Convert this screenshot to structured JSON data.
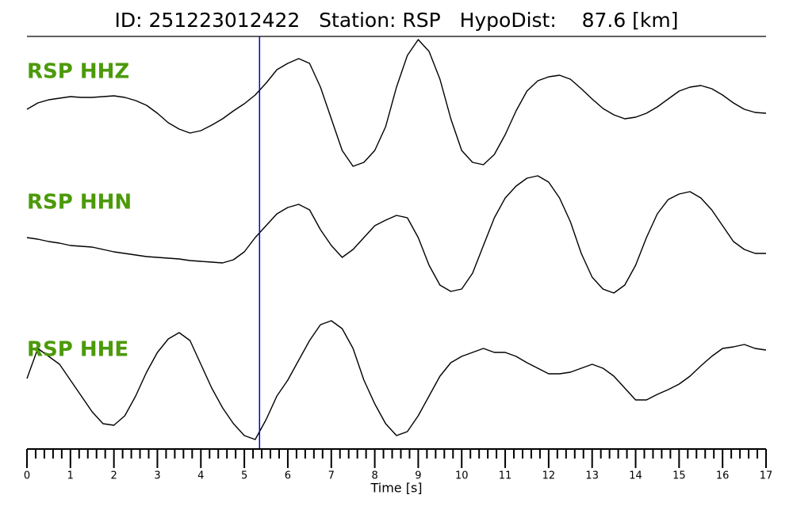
{
  "chart_data": {
    "type": "seismogram",
    "title": "ID: 251223012422   Station: RSP   HypoDist:    87.6 [km]",
    "xlabel": "Time [s]",
    "xlim": [
      0,
      17
    ],
    "xticks": [
      0,
      1,
      2,
      3,
      4,
      5,
      6,
      7,
      8,
      9,
      10,
      11,
      12,
      13,
      14,
      15,
      16,
      17
    ],
    "xminorticks": [
      0.2,
      0.4,
      0.6,
      0.8,
      1.2,
      1.4,
      1.6,
      1.8,
      2.2,
      2.4,
      2.6,
      2.8,
      3.2,
      3.4,
      3.6,
      3.8,
      4.2,
      4.4,
      4.6,
      4.8,
      5.2,
      5.4,
      5.6,
      5.8,
      6.2,
      6.4,
      6.6,
      6.8,
      7.2,
      7.4,
      7.6,
      7.8,
      8.2,
      8.4,
      8.6,
      8.8,
      9.2,
      9.4,
      9.6,
      9.8,
      10.2,
      10.4,
      10.6,
      10.8,
      11.2,
      11.4,
      11.6,
      11.8,
      12.2,
      12.4,
      12.6,
      12.8,
      13.2,
      13.4,
      13.6,
      13.8,
      14.2,
      14.4,
      14.6,
      14.8,
      15.2,
      15.4,
      15.6,
      15.8,
      16.2,
      16.4,
      16.6,
      16.8
    ],
    "ylim": [
      -90,
      90
    ],
    "marker_x": 5.35,
    "marker_color": "#0000cc",
    "label_color": "#4c9a0a",
    "x": [
      0,
      0.25,
      0.5,
      0.75,
      1,
      1.25,
      1.5,
      1.75,
      2,
      2.25,
      2.5,
      2.75,
      3,
      3.25,
      3.5,
      3.75,
      4,
      4.25,
      4.5,
      4.75,
      5,
      5.25,
      5.5,
      5.75,
      6,
      6.25,
      6.5,
      6.75,
      7,
      7.25,
      7.5,
      7.75,
      8,
      8.25,
      8.5,
      8.75,
      9,
      9.25,
      9.5,
      9.75,
      10,
      10.25,
      10.5,
      10.75,
      11,
      11.25,
      11.5,
      11.75,
      12,
      12.25,
      12.5,
      12.75,
      13,
      13.25,
      13.5,
      13.75,
      14,
      14.25,
      14.5,
      14.75,
      15,
      15.25,
      15.5,
      15.75,
      16,
      16.25,
      16.5,
      16.75,
      17
    ],
    "series": [
      {
        "name": "RSP HHZ",
        "color": "#000000",
        "values": [
          -7,
          1,
          5,
          7,
          9,
          8,
          8,
          9,
          10,
          8,
          4,
          -2,
          -12,
          -24,
          -32,
          -37,
          -34,
          -27,
          -19,
          -9,
          0,
          11,
          26,
          43,
          51,
          57,
          51,
          21,
          -19,
          -59,
          -79,
          -74,
          -59,
          -29,
          21,
          61,
          81,
          66,
          31,
          -19,
          -59,
          -74,
          -77,
          -64,
          -39,
          -9,
          16,
          29,
          34,
          36,
          31,
          19,
          6,
          -6,
          -14,
          -19,
          -17,
          -12,
          -4,
          6,
          16,
          21,
          23,
          19,
          11,
          1,
          -7,
          -11,
          -12
        ]
      },
      {
        "name": "RSP HHN",
        "color": "#000000",
        "values": [
          -4,
          -6,
          -9,
          -11,
          -14,
          -15,
          -16,
          -19,
          -22,
          -24,
          -26,
          -28,
          -29,
          -30,
          -31,
          -33,
          -34,
          -35,
          -36,
          -32,
          -22,
          -4,
          11,
          26,
          34,
          38,
          31,
          6,
          -14,
          -29,
          -19,
          -4,
          11,
          18,
          24,
          21,
          -4,
          -39,
          -64,
          -72,
          -69,
          -49,
          -14,
          21,
          46,
          61,
          71,
          74,
          66,
          46,
          16,
          -24,
          -54,
          -69,
          -74,
          -64,
          -39,
          -4,
          26,
          44,
          51,
          54,
          46,
          31,
          11,
          -9,
          -19,
          -24,
          -24
        ]
      },
      {
        "name": "RSP HHE",
        "color": "#000000",
        "values": [
          4,
          42,
          32,
          22,
          2,
          -18,
          -38,
          -53,
          -55,
          -43,
          -18,
          12,
          37,
          54,
          62,
          52,
          22,
          -8,
          -33,
          -53,
          -68,
          -73,
          -48,
          -18,
          2,
          27,
          52,
          72,
          77,
          67,
          42,
          2,
          -28,
          -53,
          -68,
          -63,
          -43,
          -18,
          7,
          24,
          32,
          37,
          42,
          37,
          37,
          32,
          24,
          17,
          10,
          10,
          12,
          17,
          22,
          17,
          7,
          -8,
          -23,
          -23,
          -16,
          -10,
          -3,
          7,
          20,
          32,
          42,
          44,
          47,
          42,
          40
        ]
      }
    ]
  }
}
